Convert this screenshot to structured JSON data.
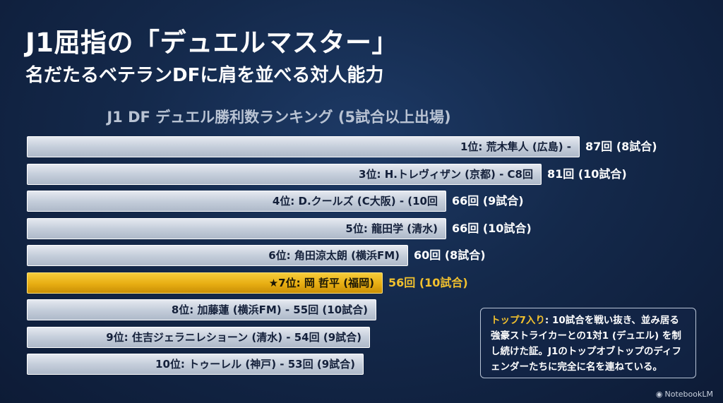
{
  "title": "J1屈指の「デュエルマスター」",
  "subtitle": "名だたるベテランDFに肩を並べる対人能力",
  "chart_data": {
    "type": "bar",
    "orientation": "horizontal",
    "title": "J1 DF デュエル勝利数ランキング (5試合以上出場)",
    "unit": "回",
    "highlight_color": "#f2c12e",
    "bar_color": "#c5cedb",
    "items": [
      {
        "label": "1位: 荒木隼人 (広島)  -",
        "value": 87,
        "value_text": "87回 (8試合)",
        "highlight": false
      },
      {
        "label": "3位: H.トレヴィザン (京都) - C8回",
        "value": 81,
        "value_text": "81回 (10試合)",
        "highlight": false
      },
      {
        "label": "4位: D.クールズ (C大阪) - (10回",
        "value": 66,
        "value_text": "66回 (9試合)",
        "highlight": false
      },
      {
        "label": "5位: 龍田学 (清水)",
        "value": 66,
        "value_text": "66回 (10試合)",
        "highlight": false
      },
      {
        "label": "6位: 角田涼太朗 (横浜FM)",
        "value": 60,
        "value_text": "60回 (8試合)",
        "highlight": false
      },
      {
        "label": "★7位: 岡 哲平 (福岡)",
        "value": 56,
        "value_text": "56回 (10試合)",
        "highlight": true
      },
      {
        "label": "8位: 加藤蓮 (横浜FM) - 55回 (10試合)",
        "value": 55,
        "value_text": "",
        "highlight": false
      },
      {
        "label": "9位: 住吉ジェラニレショーン (清水) - 54回 (9試合)",
        "value": 54,
        "value_text": "",
        "highlight": false
      },
      {
        "label": "10位: トゥーレル (神戸) - 53回 (9試合)",
        "value": 53,
        "value_text": "",
        "highlight": false
      }
    ]
  },
  "note": {
    "title": "トップ7入り",
    "body": ": 10試合を戦い抜き、並み居る強豪ストライカーとの1対1 (デュエル) を制し続けた証。J1のトップオブトップのディフェンダーたちに完全に名を連ねている。"
  },
  "brand": "NotebookLM"
}
